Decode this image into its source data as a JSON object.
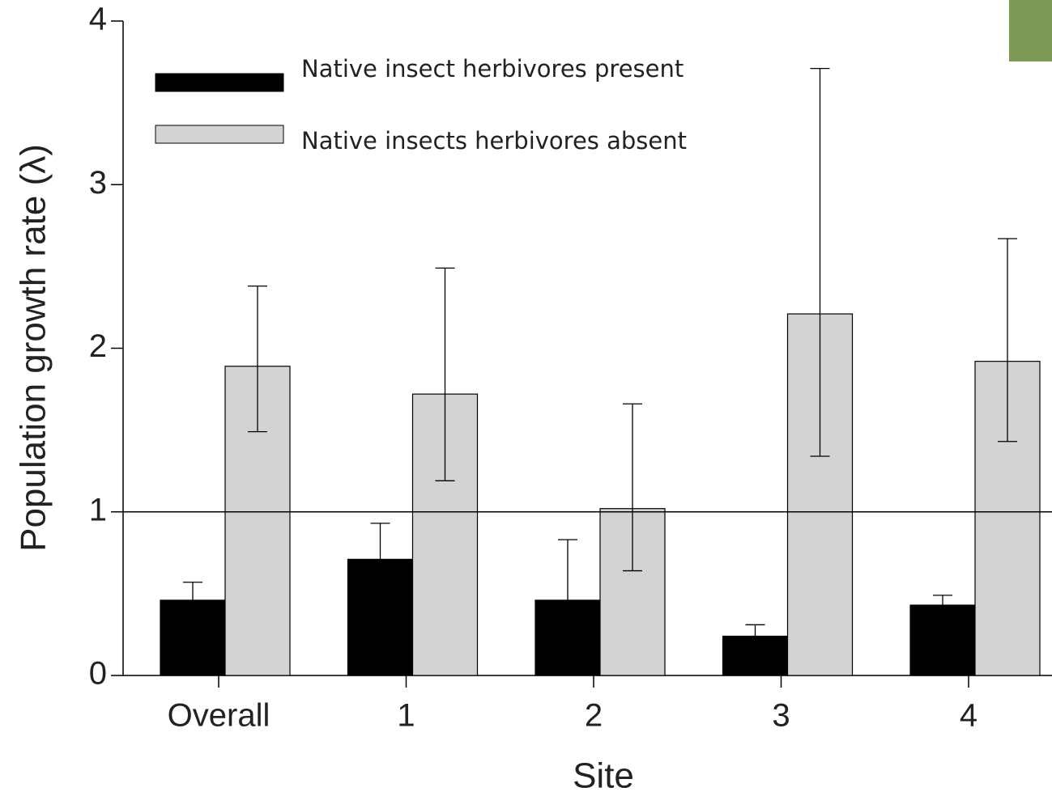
{
  "chart_data": {
    "type": "bar",
    "x_label": "Site",
    "y_label": "Population growth rate (λ)",
    "categories": [
      "Overall",
      "1",
      "2",
      "3",
      "4"
    ],
    "series": [
      {
        "name": "Native insect herbivores present",
        "color": "#000000",
        "values": [
          0.46,
          0.71,
          0.46,
          0.24,
          0.43
        ],
        "upper": [
          0.57,
          0.93,
          0.83,
          0.31,
          0.49
        ]
      },
      {
        "name": "Native insects herbivores absent",
        "color": "#d3d3d3",
        "values": [
          1.89,
          1.72,
          1.02,
          2.21,
          1.92
        ],
        "upper": [
          2.38,
          2.49,
          1.66,
          3.71,
          2.67
        ],
        "lower": [
          1.49,
          1.19,
          0.64,
          1.34,
          1.43
        ]
      }
    ],
    "reference_line": 1,
    "ylim": [
      0,
      4
    ],
    "yticks": [
      0,
      1,
      2,
      3,
      4
    ],
    "legend": "upper left"
  }
}
